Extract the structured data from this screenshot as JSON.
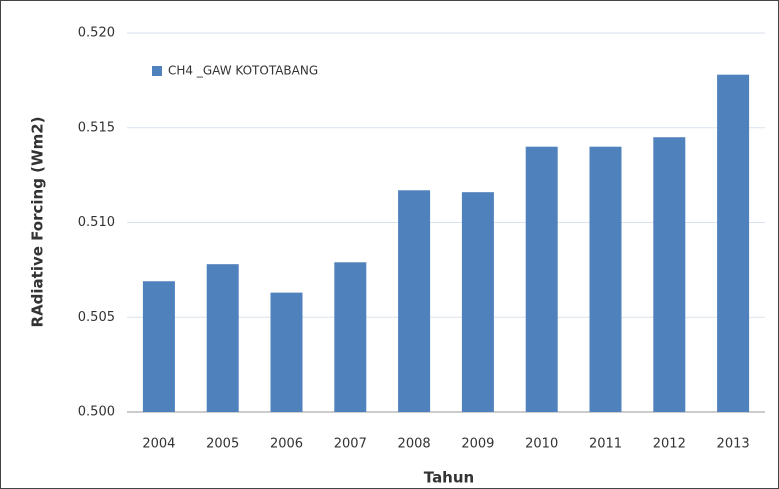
{
  "chart_data": {
    "type": "bar",
    "categories": [
      "2004",
      "2005",
      "2006",
      "2007",
      "2008",
      "2009",
      "2010",
      "2011",
      "2012",
      "2013"
    ],
    "series": [
      {
        "name": "CH4 _GAW KOTOTABANG",
        "color": "#4f81bd",
        "values": [
          0.5069,
          0.5078,
          0.5063,
          0.5079,
          0.5117,
          0.5116,
          0.514,
          0.514,
          0.5145,
          0.5178
        ]
      }
    ],
    "ylim": [
      0.5,
      0.52
    ],
    "yticks": [
      {
        "value": 0.5,
        "label": "0.500"
      },
      {
        "value": 0.505,
        "label": "0.505"
      },
      {
        "value": 0.51,
        "label": "0.510"
      },
      {
        "value": 0.515,
        "label": "0.515"
      },
      {
        "value": 0.52,
        "label": "0.520"
      }
    ],
    "x_label": "Tahun",
    "y_label": "RAdiative Forcing (Wm2)",
    "grid": true,
    "legend_position": "upper-left"
  }
}
